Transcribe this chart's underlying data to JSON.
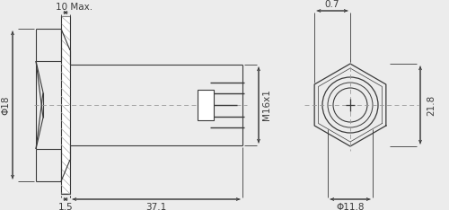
{
  "bg_color": "#ececec",
  "line_color": "#3a3a3a",
  "fig_width": 5.0,
  "fig_height": 2.34,
  "dpi": 100,
  "annotations": {
    "dim_10max": "10 Max.",
    "dim_phi18": "Φ18",
    "dim_15": "1.5",
    "dim_371": "37.1",
    "dim_m16": "M16x1",
    "dim_07": "0.7",
    "dim_218": "21.8",
    "dim_phi118": "Φ11.8"
  }
}
